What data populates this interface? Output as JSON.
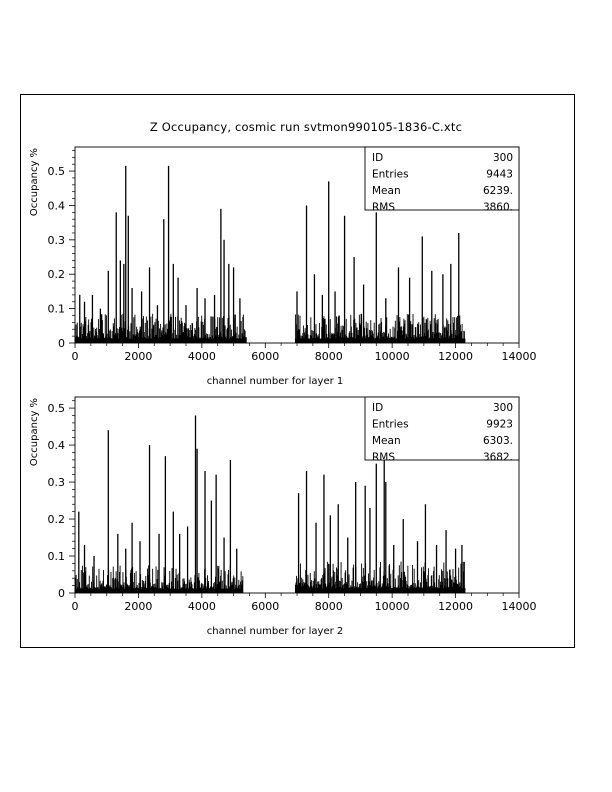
{
  "figure": {
    "title": "Z Occupancy, cosmic run svtmon990105-1836-C.xtc"
  },
  "chart_data": [
    {
      "type": "bar",
      "panel": "layer-1",
      "xlabel": "channel number for layer 1",
      "ylabel": "Occupancy %",
      "xlim": [
        0,
        14000
      ],
      "ylim": [
        0,
        0.57
      ],
      "xticks": [
        0,
        2000,
        4000,
        6000,
        8000,
        10000,
        12000,
        14000
      ],
      "yticks": [
        0,
        0.1,
        0.2,
        0.3,
        0.4,
        0.5
      ],
      "xtick_labels": [
        "0",
        "2000",
        "4000",
        "6000",
        "8000",
        "10000",
        "12000",
        "14000"
      ],
      "ytick_labels": [
        "0",
        "0.1",
        "0.2",
        "0.3",
        "0.4",
        "0.5"
      ],
      "stats": {
        "labels": [
          "ID",
          "Entries",
          "Mean",
          "RMS"
        ],
        "values": [
          "300",
          "9443",
          "6239.",
          "3860."
        ]
      },
      "noise_ranges": [
        [
          0,
          5400,
          0.085
        ],
        [
          6950,
          12300,
          0.085
        ]
      ],
      "peaks": [
        [
          150,
          0.14
        ],
        [
          300,
          0.12
        ],
        [
          550,
          0.14
        ],
        [
          800,
          0.1
        ],
        [
          1050,
          0.21
        ],
        [
          1300,
          0.38
        ],
        [
          1430,
          0.24
        ],
        [
          1540,
          0.23
        ],
        [
          1600,
          0.515
        ],
        [
          1680,
          0.37
        ],
        [
          1800,
          0.16
        ],
        [
          2100,
          0.15
        ],
        [
          2350,
          0.22
        ],
        [
          2600,
          0.11
        ],
        [
          2800,
          0.36
        ],
        [
          2950,
          0.515
        ],
        [
          3100,
          0.23
        ],
        [
          3250,
          0.19
        ],
        [
          3500,
          0.11
        ],
        [
          3850,
          0.16
        ],
        [
          4100,
          0.13
        ],
        [
          4400,
          0.14
        ],
        [
          4600,
          0.39
        ],
        [
          4700,
          0.3
        ],
        [
          4850,
          0.23
        ],
        [
          5000,
          0.22
        ],
        [
          5200,
          0.13
        ],
        [
          7000,
          0.15
        ],
        [
          7300,
          0.4
        ],
        [
          7550,
          0.2
        ],
        [
          7800,
          0.14
        ],
        [
          8000,
          0.47
        ],
        [
          8200,
          0.15
        ],
        [
          8500,
          0.37
        ],
        [
          8800,
          0.25
        ],
        [
          9100,
          0.17
        ],
        [
          9500,
          0.38
        ],
        [
          9800,
          0.13
        ],
        [
          10200,
          0.22
        ],
        [
          10550,
          0.19
        ],
        [
          10950,
          0.31
        ],
        [
          11250,
          0.21
        ],
        [
          11600,
          0.2
        ],
        [
          11850,
          0.23
        ],
        [
          12100,
          0.32
        ]
      ]
    },
    {
      "type": "bar",
      "panel": "layer-2",
      "xlabel": "channel number for layer 2",
      "ylabel": "Occupancy %",
      "xlim": [
        0,
        14000
      ],
      "ylim": [
        0,
        0.53
      ],
      "xticks": [
        0,
        2000,
        4000,
        6000,
        8000,
        10000,
        12000,
        14000
      ],
      "yticks": [
        0,
        0.1,
        0.2,
        0.3,
        0.4,
        0.5
      ],
      "xtick_labels": [
        "0",
        "2000",
        "4000",
        "6000",
        "8000",
        "10000",
        "12000",
        "14000"
      ],
      "ytick_labels": [
        "0",
        "0.1",
        "0.2",
        "0.3",
        "0.4",
        "0.5"
      ],
      "stats": {
        "labels": [
          "ID",
          "Entries",
          "Mean",
          "RMS"
        ],
        "values": [
          "300",
          "9923",
          "6303.",
          "3682."
        ]
      },
      "noise_ranges": [
        [
          0,
          5300,
          0.075
        ],
        [
          6950,
          12300,
          0.085
        ]
      ],
      "peaks": [
        [
          120,
          0.22
        ],
        [
          300,
          0.13
        ],
        [
          600,
          0.1
        ],
        [
          1050,
          0.44
        ],
        [
          1350,
          0.16
        ],
        [
          1600,
          0.12
        ],
        [
          1800,
          0.19
        ],
        [
          2050,
          0.14
        ],
        [
          2350,
          0.4
        ],
        [
          2650,
          0.16
        ],
        [
          2850,
          0.37
        ],
        [
          3100,
          0.22
        ],
        [
          3300,
          0.16
        ],
        [
          3550,
          0.18
        ],
        [
          3800,
          0.48
        ],
        [
          3850,
          0.39
        ],
        [
          4100,
          0.33
        ],
        [
          4300,
          0.25
        ],
        [
          4450,
          0.32
        ],
        [
          4700,
          0.15
        ],
        [
          4900,
          0.36
        ],
        [
          5100,
          0.12
        ],
        [
          7050,
          0.27
        ],
        [
          7300,
          0.33
        ],
        [
          7600,
          0.19
        ],
        [
          7850,
          0.32
        ],
        [
          8050,
          0.21
        ],
        [
          8300,
          0.24
        ],
        [
          8600,
          0.15
        ],
        [
          8850,
          0.3
        ],
        [
          9150,
          0.29
        ],
        [
          9300,
          0.23
        ],
        [
          9500,
          0.35
        ],
        [
          9750,
          0.42
        ],
        [
          9800,
          0.3
        ],
        [
          10050,
          0.13
        ],
        [
          10350,
          0.2
        ],
        [
          10800,
          0.14
        ],
        [
          11050,
          0.24
        ],
        [
          11400,
          0.13
        ],
        [
          11700,
          0.17
        ],
        [
          12000,
          0.12
        ],
        [
          12200,
          0.13
        ]
      ]
    }
  ]
}
